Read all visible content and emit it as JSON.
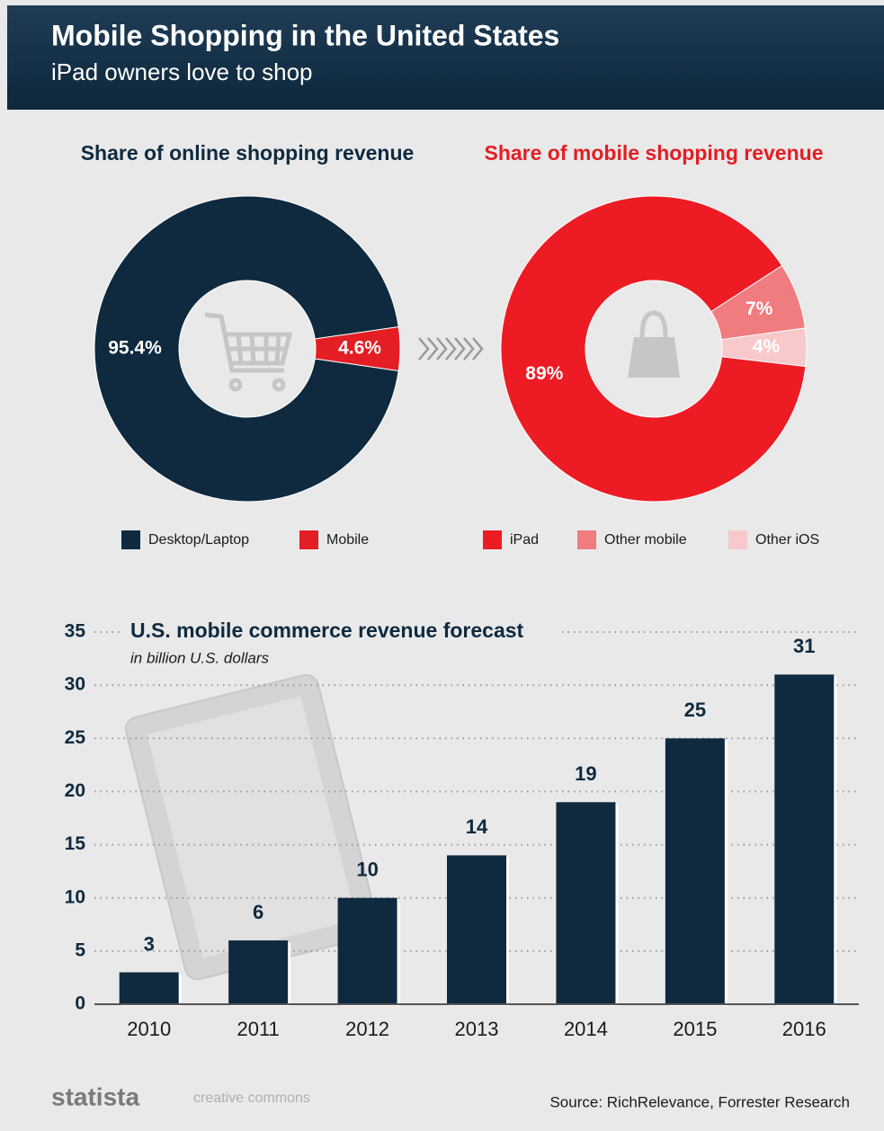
{
  "header": {
    "title": "Mobile Shopping in the United States",
    "subtitle": "iPad owners love to shop"
  },
  "chart_data": [
    {
      "type": "pie",
      "title": "Share of online shopping revenue",
      "categories": [
        "Desktop/Laptop",
        "Mobile"
      ],
      "values": [
        95.4,
        4.6
      ],
      "value_labels": [
        "95.4%",
        "4.6%"
      ],
      "colors": [
        "#0f2a3f",
        "#e31e24"
      ]
    },
    {
      "type": "pie",
      "title": "Share of mobile shopping revenue",
      "categories": [
        "iPad",
        "Other mobile",
        "Other iOS"
      ],
      "values": [
        89,
        7,
        4
      ],
      "value_labels": [
        "89%",
        "7%",
        "4%"
      ],
      "colors": [
        "#ed1c24",
        "#f07c80",
        "#f8c9cb"
      ]
    },
    {
      "type": "bar",
      "title": "U.S. mobile commerce revenue forecast",
      "subtitle": "in billion U.S. dollars",
      "categories": [
        "2010",
        "2011",
        "2012",
        "2013",
        "2014",
        "2015",
        "2016"
      ],
      "values": [
        3,
        6,
        10,
        14,
        19,
        25,
        31
      ],
      "color": "#0f2a3f",
      "ylim": [
        0,
        35
      ],
      "yticks": [
        0,
        5,
        10,
        15,
        20,
        25,
        30,
        35
      ],
      "grid": true
    }
  ],
  "footer": {
    "brand": "statista",
    "license": "creative commons",
    "source": "Source: RichRelevance, Forrester Research"
  }
}
